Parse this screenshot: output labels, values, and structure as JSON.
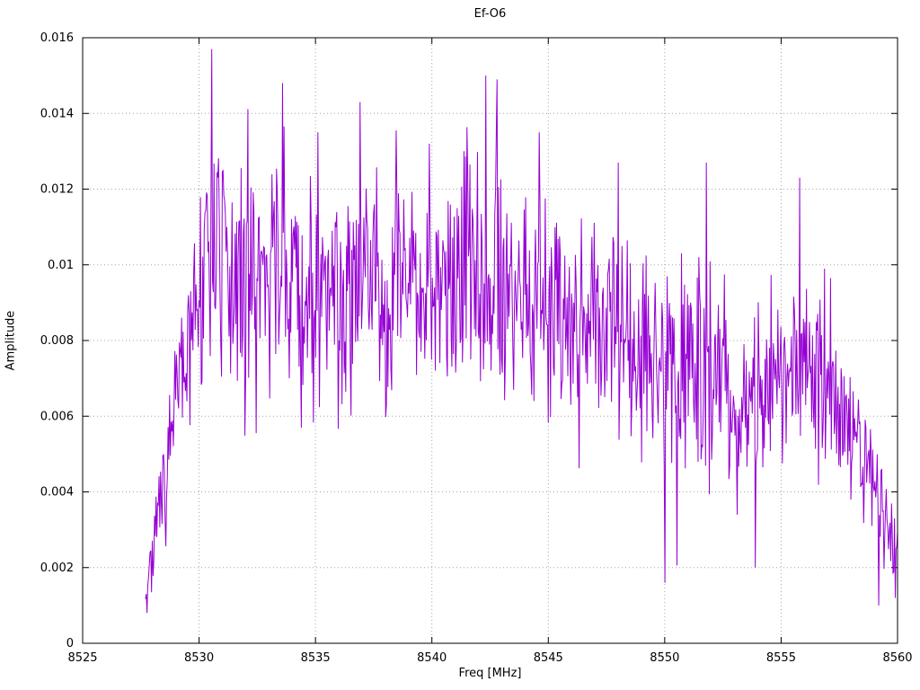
{
  "figure": {
    "title": "Ef-O6",
    "xlabel": "Freq [MHz]",
    "ylabel": "Amplitude"
  },
  "chart_data": {
    "type": "line",
    "title": "Ef-O6",
    "xlabel": "Freq [MHz]",
    "ylabel": "Amplitude",
    "xlim": [
      8525,
      8560
    ],
    "ylim": [
      0,
      0.016
    ],
    "grid": true,
    "legend": "none",
    "line_color": "#9400D3",
    "grid_color": "#a6a6a6",
    "border_color": "#000000",
    "xticks": {
      "values": [
        8525,
        8530,
        8535,
        8540,
        8545,
        8550,
        8555,
        8560
      ],
      "labels": [
        "8525",
        "8530",
        "8535",
        "8540",
        "8545",
        "8550",
        "8555",
        "8560"
      ]
    },
    "yticks": {
      "values": [
        0,
        0.002,
        0.004,
        0.006,
        0.008,
        0.01,
        0.012,
        0.014,
        0.016
      ],
      "labels": [
        "0",
        "0.002",
        "0.004",
        "0.006",
        "0.008",
        "0.01",
        "0.012",
        "0.014",
        "0.016"
      ]
    },
    "series": [
      {
        "name": "Ef-O6",
        "x_start": 8527.7,
        "x_end": 8560.0,
        "samples": 1000,
        "seed": 7,
        "envelope": [
          {
            "x": 8527.7,
            "mean": 0.0015,
            "spread": 0.0008
          },
          {
            "x": 8528.2,
            "mean": 0.003,
            "spread": 0.0013
          },
          {
            "x": 8528.8,
            "mean": 0.005,
            "spread": 0.0022
          },
          {
            "x": 8529.3,
            "mean": 0.0075,
            "spread": 0.0028
          },
          {
            "x": 8530.0,
            "mean": 0.009,
            "spread": 0.0032
          },
          {
            "x": 8530.6,
            "mean": 0.0105,
            "spread": 0.0038
          },
          {
            "x": 8531.4,
            "mean": 0.009,
            "spread": 0.0032
          },
          {
            "x": 8532.2,
            "mean": 0.0095,
            "spread": 0.0035
          },
          {
            "x": 8533.5,
            "mean": 0.01,
            "spread": 0.0036
          },
          {
            "x": 8534.5,
            "mean": 0.009,
            "spread": 0.0032
          },
          {
            "x": 8535.2,
            "mean": 0.0098,
            "spread": 0.0035
          },
          {
            "x": 8536.2,
            "mean": 0.0092,
            "spread": 0.0033
          },
          {
            "x": 8537.1,
            "mean": 0.01,
            "spread": 0.0036
          },
          {
            "x": 8538.0,
            "mean": 0.0093,
            "spread": 0.0033
          },
          {
            "x": 8539.0,
            "mean": 0.0096,
            "spread": 0.0034
          },
          {
            "x": 8540.0,
            "mean": 0.0093,
            "spread": 0.0034
          },
          {
            "x": 8541.0,
            "mean": 0.0094,
            "spread": 0.0033
          },
          {
            "x": 8542.5,
            "mean": 0.01,
            "spread": 0.0037
          },
          {
            "x": 8543.5,
            "mean": 0.0092,
            "spread": 0.0033
          },
          {
            "x": 8544.5,
            "mean": 0.009,
            "spread": 0.0033
          },
          {
            "x": 8545.5,
            "mean": 0.0088,
            "spread": 0.0033
          },
          {
            "x": 8546.5,
            "mean": 0.0086,
            "spread": 0.0032
          },
          {
            "x": 8547.5,
            "mean": 0.0087,
            "spread": 0.0033
          },
          {
            "x": 8548.5,
            "mean": 0.0083,
            "spread": 0.0032
          },
          {
            "x": 8549.5,
            "mean": 0.0074,
            "spread": 0.0032
          },
          {
            "x": 8550.3,
            "mean": 0.0072,
            "spread": 0.0033
          },
          {
            "x": 8551.3,
            "mean": 0.0078,
            "spread": 0.0032
          },
          {
            "x": 8552.3,
            "mean": 0.0072,
            "spread": 0.003
          },
          {
            "x": 8553.3,
            "mean": 0.0064,
            "spread": 0.0028
          },
          {
            "x": 8554.3,
            "mean": 0.0063,
            "spread": 0.0028
          },
          {
            "x": 8555.3,
            "mean": 0.0072,
            "spread": 0.0028
          },
          {
            "x": 8556.3,
            "mean": 0.0073,
            "spread": 0.0028
          },
          {
            "x": 8557.3,
            "mean": 0.0066,
            "spread": 0.0024
          },
          {
            "x": 8558.2,
            "mean": 0.0055,
            "spread": 0.002
          },
          {
            "x": 8559.0,
            "mean": 0.0042,
            "spread": 0.0017
          },
          {
            "x": 8559.6,
            "mean": 0.003,
            "spread": 0.0013
          },
          {
            "x": 8560.0,
            "mean": 0.0022,
            "spread": 0.0009
          }
        ],
        "peaks": [
          {
            "x": 8530.55,
            "v": 0.0157
          },
          {
            "x": 8542.3,
            "v": 0.015
          },
          {
            "x": 8542.8,
            "v": 0.0149
          },
          {
            "x": 8533.6,
            "v": 0.0148
          },
          {
            "x": 8536.9,
            "v": 0.0143
          },
          {
            "x": 8535.1,
            "v": 0.0135
          },
          {
            "x": 8544.6,
            "v": 0.0135
          },
          {
            "x": 8539.9,
            "v": 0.0132
          },
          {
            "x": 8551.8,
            "v": 0.0127
          },
          {
            "x": 8548.0,
            "v": 0.0127
          },
          {
            "x": 8555.8,
            "v": 0.0123
          }
        ],
        "valleys": [
          {
            "x": 8527.75,
            "v": 0.0008
          },
          {
            "x": 8550.0,
            "v": 0.0016
          },
          {
            "x": 8553.9,
            "v": 0.002
          },
          {
            "x": 8559.2,
            "v": 0.001
          },
          {
            "x": 8559.9,
            "v": 0.0012
          }
        ]
      }
    ]
  }
}
